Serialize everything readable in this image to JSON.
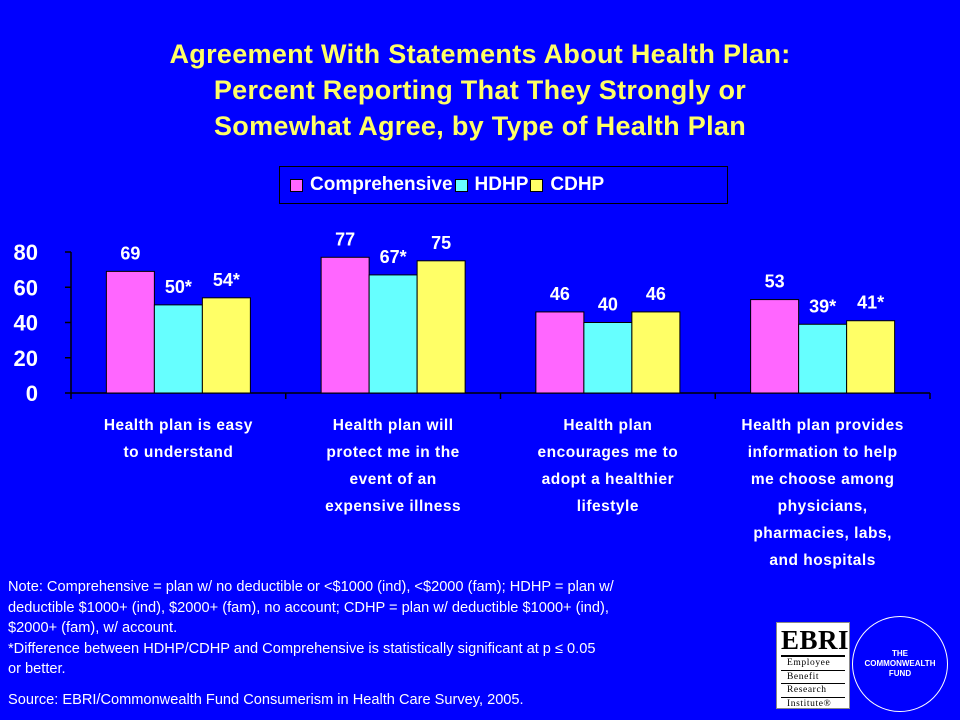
{
  "title": {
    "line1": "Agreement With Statements About Health Plan:",
    "line2": "Percent Reporting That They Strongly or",
    "line3": "Somewhat Agree, by Type of Health Plan"
  },
  "colors": {
    "background": "#0000FF",
    "title": "#FFFF66",
    "comprehensive": "#FF66FF",
    "hdhp": "#66FFFF",
    "cdhp": "#FFFF66",
    "text": "#FFFFFF"
  },
  "legend": {
    "items": [
      {
        "label": "Comprehensive",
        "color": "#FF66FF"
      },
      {
        "label": "HDHP",
        "color": "#66FFFF"
      },
      {
        "label": "CDHP",
        "color": "#FFFF66"
      }
    ]
  },
  "chart_data": {
    "type": "bar",
    "title": "Agreement With Statements About Health Plan: Percent Reporting That They Strongly or Somewhat Agree, by Type of Health Plan",
    "categories": [
      [
        "Health plan is easy",
        "to understand"
      ],
      [
        "Health plan will",
        "protect me in the",
        "event of an",
        "expensive illness"
      ],
      [
        "Health plan",
        "encourages me to",
        "adopt a healthier",
        "lifestyle"
      ],
      [
        "Health plan provides",
        "information to help",
        "me choose among",
        "physicians,",
        "pharmacies, labs,",
        "and hospitals"
      ]
    ],
    "series": [
      {
        "name": "Comprehensive",
        "values": [
          69,
          77,
          46,
          53
        ],
        "labels": [
          "69",
          "77",
          "46",
          "53"
        ]
      },
      {
        "name": "HDHP",
        "values": [
          50,
          67,
          40,
          39
        ],
        "labels": [
          "50*",
          "67*",
          "40",
          "39*"
        ]
      },
      {
        "name": "CDHP",
        "values": [
          54,
          75,
          46,
          41
        ],
        "labels": [
          "54*",
          "75",
          "46",
          "41*"
        ]
      }
    ],
    "yticks": [
      0,
      20,
      40,
      60,
      80
    ],
    "ylim": [
      0,
      80
    ],
    "grid": false,
    "legend_position": "top"
  },
  "notes": {
    "line1": "Note: Comprehensive = plan w/ no deductible or <$1000 (ind), <$2000 (fam); HDHP = plan w/",
    "line2": "deductible $1000+ (ind), $2000+ (fam), no account; CDHP = plan w/ deductible $1000+ (ind),",
    "line3": "$2000+ (fam), w/ account.",
    "line4": "*Difference between HDHP/CDHP and Comprehensive is statistically significant at p ≤ 0.05",
    "line5": "or better."
  },
  "source": "Source: EBRI/Commonwealth Fund Consumerism in Health Care Survey, 2005.",
  "logos": {
    "ebri": {
      "acronym": "EBRI",
      "line1": "Employee",
      "line2": "Benefit",
      "line3": "Research",
      "line4": "Institute®"
    },
    "cwf": {
      "line1": "THE",
      "line2": "COMMONWEALTH",
      "line3": "FUND"
    }
  }
}
